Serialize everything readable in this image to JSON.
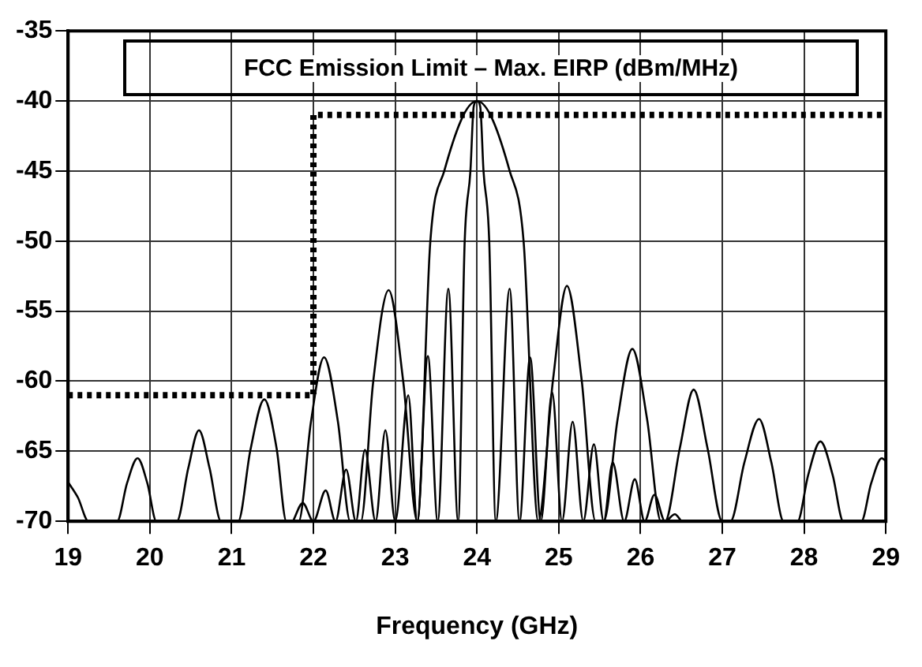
{
  "chart_data": {
    "type": "line",
    "title": "FCC Emission Limit – Max. EIRP (dBm/MHz)",
    "xlabel": "Frequency (GHz)",
    "xlim": [
      19,
      29
    ],
    "xticks": [
      19,
      20,
      21,
      22,
      23,
      24,
      25,
      26,
      27,
      28,
      29
    ],
    "ylim": [
      -70,
      -35
    ],
    "yticks": [
      -35,
      -40,
      -45,
      -50,
      -55,
      -60,
      -65,
      -70
    ],
    "grid": true,
    "legend": false,
    "marker": "none",
    "series": [
      {
        "type": "step",
        "color": "#000000",
        "line_style": "dotted",
        "x": [
          19,
          22,
          29
        ],
        "values": [
          -61,
          -41,
          -41
        ]
      },
      {
        "color": "#000000",
        "line_style": "solid",
        "x": [
          19,
          19.12,
          19.25,
          19.6,
          19.72,
          19.85,
          19.97,
          20.08,
          20.33,
          20.47,
          20.6,
          20.73,
          20.87,
          21.08,
          21.23,
          21.4,
          21.55,
          21.67,
          21.82,
          21.97,
          22.13,
          22.3,
          22.45,
          22.58,
          22.73,
          22.92,
          23.1,
          23.27,
          23.43,
          23.6,
          24,
          24.4,
          24.57,
          24.75,
          24.93,
          25.1,
          25.28,
          25.45,
          25.55,
          25.72,
          25.9,
          26.08,
          26.25,
          26.3,
          26.48,
          26.65,
          26.82,
          27.0,
          27.1,
          27.27,
          27.45,
          27.6,
          27.75,
          27.92,
          28.05,
          28.2,
          28.35,
          28.48,
          28.7,
          28.82,
          28.95,
          29
        ],
        "values": [
          -67.2,
          -68.3,
          -70,
          -70,
          -67.3,
          -65.5,
          -67.3,
          -70,
          -70,
          -66.2,
          -63.5,
          -66.2,
          -70,
          -70,
          -64.9,
          -61.3,
          -64.8,
          -70,
          -70,
          -62.9,
          -58.3,
          -62.9,
          -70,
          -70,
          -60.1,
          -53.5,
          -60.1,
          -70,
          -50,
          -45,
          -40,
          -45,
          -50,
          -70,
          -59.9,
          -53.2,
          -59.9,
          -70,
          -70,
          -62.7,
          -57.7,
          -62.7,
          -70,
          -70,
          -64.8,
          -60.6,
          -64.8,
          -70,
          -70,
          -65.8,
          -62.7,
          -65.8,
          -70,
          -70,
          -66.7,
          -64.3,
          -66.7,
          -70,
          -70,
          -67.3,
          -65.5,
          -65.7
        ]
      },
      {
        "color": "#000000",
        "line_style": "solid",
        "x": [
          21.75,
          21.87,
          22.0,
          22.15,
          22.27,
          22.4,
          22.52,
          22.63,
          22.76,
          22.88,
          23.0,
          23.16,
          23.27,
          23.4,
          23.52,
          23.65,
          23.77,
          23.85,
          23.92,
          23.96,
          24,
          24.04,
          24.08,
          24.15,
          24.23,
          24.4,
          24.52,
          24.65,
          24.78,
          24.92,
          25.04,
          25.17,
          25.3,
          25.43,
          25.55,
          25.66,
          25.8,
          25.93,
          26.05,
          26.17,
          26.3,
          26.42,
          26.5
        ],
        "values": [
          -70,
          -68.7,
          -70,
          -67.8,
          -70,
          -66.3,
          -70,
          -64.9,
          -70,
          -63.5,
          -70,
          -61,
          -70,
          -58.2,
          -70,
          -53.4,
          -70,
          -50,
          -45,
          -40.4,
          -40,
          -40.4,
          -45,
          -50,
          -70,
          -53.4,
          -70,
          -58.3,
          -70,
          -60.8,
          -70,
          -62.9,
          -70,
          -64.5,
          -70,
          -65.8,
          -70,
          -67,
          -70,
          -68.1,
          -70,
          -69.5,
          -70
        ]
      }
    ]
  }
}
